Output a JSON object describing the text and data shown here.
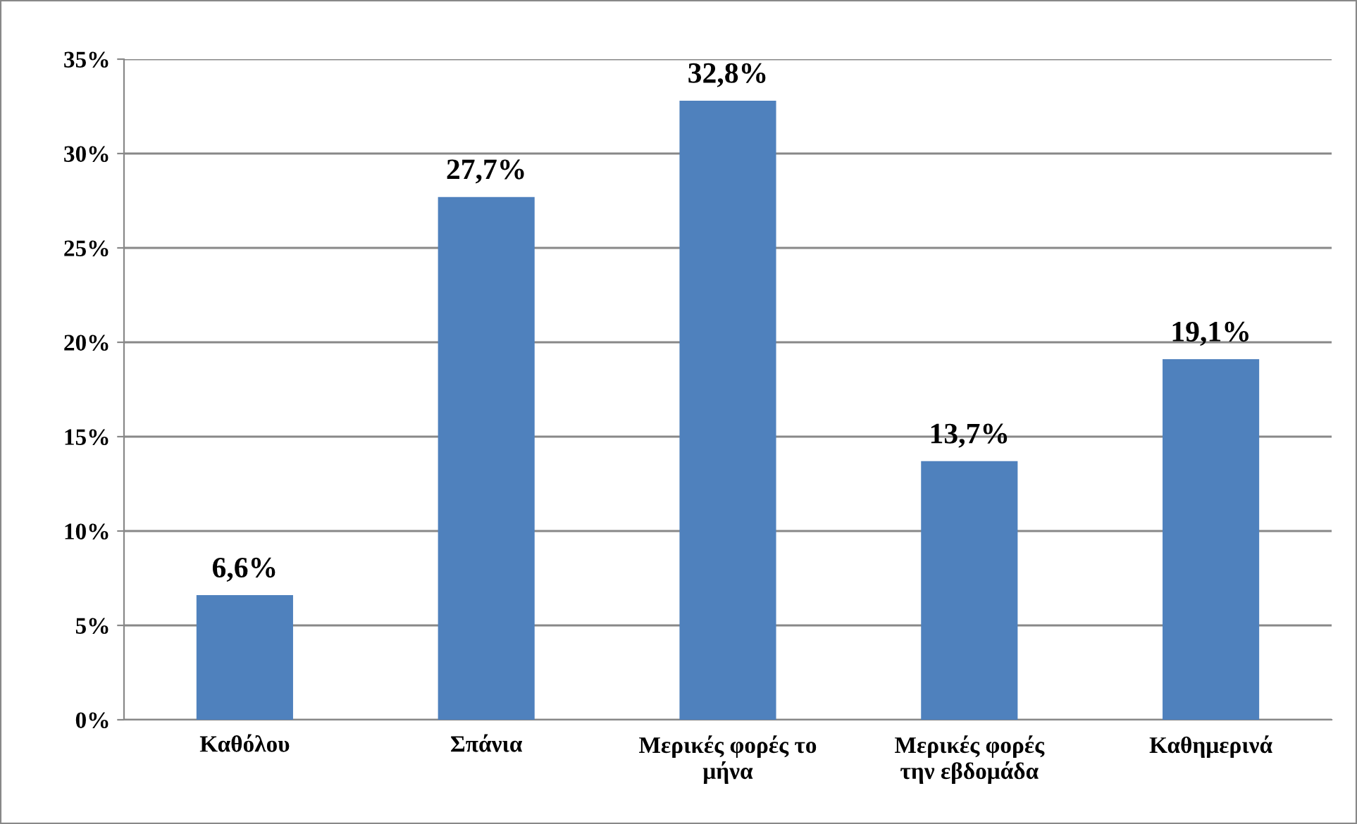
{
  "chart_data": {
    "type": "bar",
    "categories": [
      "Καθόλου",
      "Σπάνια",
      "Μερικές φορές το\nμήνα",
      "Μερικές φορές\nτην εβδομάδα",
      "Καθημερινά"
    ],
    "values": [
      6.6,
      27.7,
      32.8,
      13.7,
      19.1
    ],
    "value_labels": [
      "6,6%",
      "27,7%",
      "32,8%",
      "13,7%",
      "19,1%"
    ],
    "color": "#4f81bd",
    "ylim": [
      0,
      35
    ],
    "yticks": [
      {
        "value": 0,
        "label": "0%"
      },
      {
        "value": 5,
        "label": "5%"
      },
      {
        "value": 10,
        "label": "10%"
      },
      {
        "value": 15,
        "label": "15%"
      },
      {
        "value": 20,
        "label": "20%"
      },
      {
        "value": 25,
        "label": "25%"
      },
      {
        "value": 30,
        "label": "30%"
      },
      {
        "value": 35,
        "label": "35%"
      }
    ],
    "grid": "y",
    "legend": false
  }
}
